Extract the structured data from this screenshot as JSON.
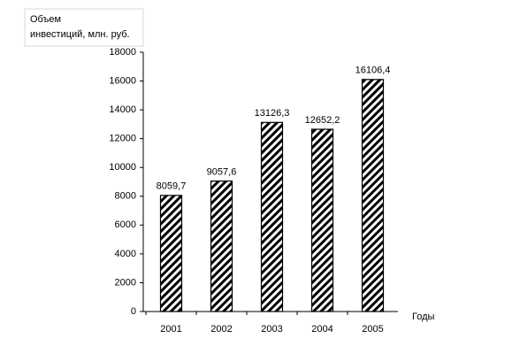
{
  "chart_data": {
    "type": "bar",
    "y_label_lines": [
      "Объем",
      "инвестиций, млн. руб."
    ],
    "x_label": "Годы",
    "categories": [
      "2001",
      "2002",
      "2003",
      "2004",
      "2005"
    ],
    "values": [
      8059.7,
      9057.6,
      13126.3,
      12652.2,
      16106.4
    ],
    "value_labels": [
      "8059,7",
      "9057,6",
      "13126,3",
      "12652,2",
      "16106,4"
    ],
    "color": "#000000",
    "ylim": [
      0,
      18000
    ],
    "yticks": [
      0,
      2000,
      4000,
      6000,
      8000,
      10000,
      12000,
      14000,
      16000,
      18000
    ]
  }
}
